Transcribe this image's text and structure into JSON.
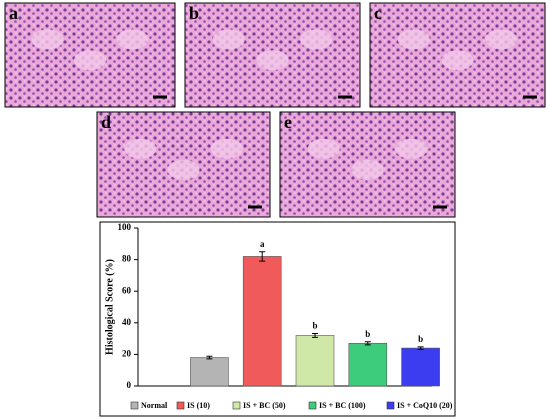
{
  "panels": [
    "a",
    "b",
    "c",
    "d",
    "e"
  ],
  "chart_data": {
    "type": "bar",
    "y_label": "Histological Score (%)",
    "categories": [
      "Normal",
      "IS (10)",
      "IS + BC (50)",
      "IS + BC (100)",
      "IS + CoQ10 (20)"
    ],
    "values": [
      18,
      82,
      32,
      27,
      24
    ],
    "errors": [
      0.8,
      3,
      1.2,
      1,
      0.8
    ],
    "significance": [
      null,
      "a",
      "b",
      "b",
      "b"
    ],
    "colors": [
      "#b4b4b4",
      "#f05a5a",
      "#cfe8a8",
      "#3ccc7c",
      "#3c3cf0"
    ],
    "ylim": [
      0,
      100
    ],
    "yticks": [
      0,
      20,
      40,
      60,
      80,
      100
    ]
  }
}
